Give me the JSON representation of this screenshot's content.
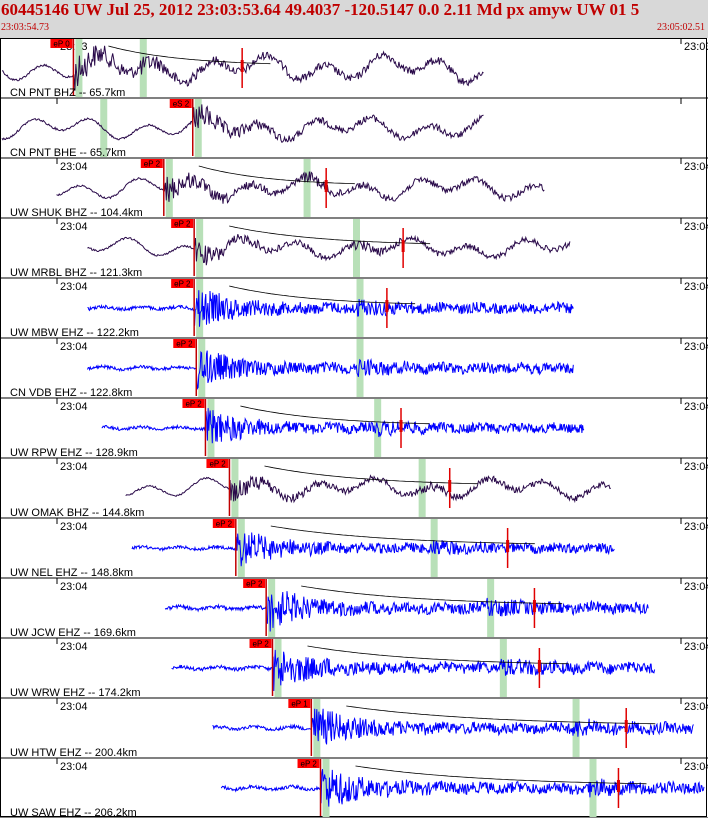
{
  "header": {
    "title": "60445146 UW Jul 25, 2012 23:03:53.64   49.4037 -120.5147  0.0 2.11 Md px amyw UW 01   5",
    "start_time": "23:03:54.73",
    "end_time": "23:05:02.51",
    "background_color": "#d8d8d8",
    "text_color": "#c00000"
  },
  "colors": {
    "short_period": "#0000ff",
    "broadband": "#2a0a4a",
    "pick_box": "#ff0000",
    "coda_window": "#b8e0b8",
    "coda_curve": "#000000"
  },
  "channels": [
    {
      "label": "CN PNT BHZ -- 65.7km",
      "time": "23:03",
      "pick": "eP 0",
      "pick_t": 0.104,
      "s_t": 0.198,
      "coda_t": 0.343,
      "end_t": 0.688,
      "start_t": 0.0,
      "kind": "bb",
      "amp": 30
    },
    {
      "label": "CN PNT BHE -- 65.7km",
      "time": "",
      "pick": "eS 2",
      "pick_t": 0.273,
      "s_t": 0.142,
      "coda_t": null,
      "end_t": 0.688,
      "start_t": 0.0,
      "kind": "bb",
      "amp": 25
    },
    {
      "label": "UW SHUK BHZ -- 104.4km",
      "time": "23:04",
      "pick": "eP 2",
      "pick_t": 0.232,
      "s_t": 0.43,
      "coda_t": 0.462,
      "end_t": 0.774,
      "start_t": 0.08,
      "kind": "bb",
      "amp": 24
    },
    {
      "label": "UW MRBL BHZ -- 121.3km",
      "time": "23:04",
      "pick": "eP 2",
      "pick_t": 0.275,
      "s_t": 0.5,
      "coda_t": 0.571,
      "end_t": 0.811,
      "start_t": 0.124,
      "kind": "bb",
      "amp": 22
    },
    {
      "label": "UW MBW EHZ -- 122.2km",
      "time": "23:04",
      "pick": "eP 2",
      "pick_t": 0.275,
      "s_t": 0.505,
      "coda_t": 0.548,
      "end_t": 0.815,
      "start_t": 0.124,
      "kind": "sp",
      "amp": 28
    },
    {
      "label": "CN VDB EHZ -- 122.8km",
      "time": "23:04",
      "pick": "eP 2",
      "pick_t": 0.278,
      "s_t": 0.505,
      "coda_t": null,
      "end_t": 0.815,
      "start_t": 0.124,
      "kind": "sp",
      "amp": 28
    },
    {
      "label": "UW RPW EHZ -- 128.9km",
      "time": "23:04",
      "pick": "eP 2",
      "pick_t": 0.291,
      "s_t": 0.53,
      "coda_t": 0.568,
      "end_t": 0.83,
      "start_t": 0.144,
      "kind": "sp",
      "amp": 26
    },
    {
      "label": "UW OMAK BHZ -- 144.8km",
      "time": "23:04",
      "pick": "eP 2",
      "pick_t": 0.325,
      "s_t": 0.593,
      "coda_t": 0.637,
      "end_t": 0.868,
      "start_t": 0.178,
      "kind": "bb",
      "amp": 22
    },
    {
      "label": "UW NEL EHZ -- 148.8km",
      "time": "23:04",
      "pick": "eP 2",
      "pick_t": 0.334,
      "s_t": 0.61,
      "coda_t": 0.719,
      "end_t": 0.873,
      "start_t": 0.187,
      "kind": "sp",
      "amp": 26
    },
    {
      "label": "UW JCW EHZ -- 169.6km",
      "time": "23:04",
      "pick": "eP 2",
      "pick_t": 0.377,
      "s_t": 0.69,
      "coda_t": 0.757,
      "end_t": 0.921,
      "start_t": 0.234,
      "kind": "sp",
      "amp": 30
    },
    {
      "label": "UW WRW EHZ -- 174.2km",
      "time": "23:04",
      "pick": "eP 2",
      "pick_t": 0.386,
      "s_t": 0.708,
      "coda_t": 0.764,
      "end_t": 0.93,
      "start_t": 0.243,
      "kind": "sp",
      "amp": 30
    },
    {
      "label": "UW HTW EHZ -- 200.4km",
      "time": "23:04",
      "pick": "eP 1",
      "pick_t": 0.441,
      "s_t": 0.811,
      "coda_t": 0.887,
      "end_t": 0.985,
      "start_t": 0.301,
      "kind": "sp",
      "amp": 30
    },
    {
      "label": "UW SAW EHZ -- 206.2km",
      "time": "23:04",
      "pick": "eP 2",
      "pick_t": 0.454,
      "s_t": 0.835,
      "coda_t": 0.876,
      "end_t": 1.0,
      "start_t": 0.313,
      "kind": "sp",
      "amp": 30
    }
  ]
}
